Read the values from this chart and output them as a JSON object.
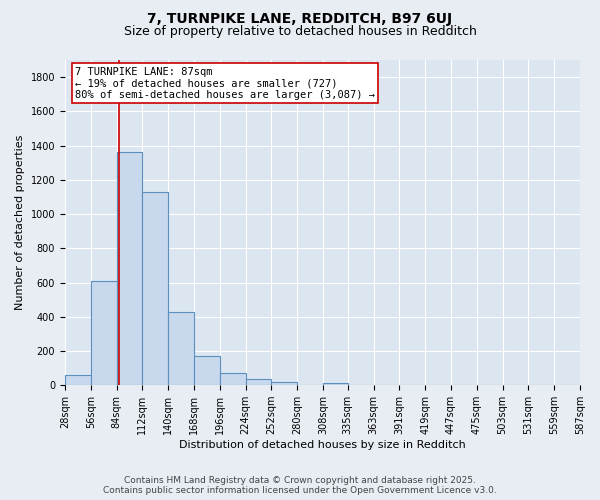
{
  "title1": "7, TURNPIKE LANE, REDDITCH, B97 6UJ",
  "title2": "Size of property relative to detached houses in Redditch",
  "xlabel": "Distribution of detached houses by size in Redditch",
  "ylabel": "Number of detached properties",
  "bin_edges": [
    28,
    56,
    84,
    112,
    140,
    168,
    196,
    224,
    252,
    280,
    308,
    335,
    363,
    391,
    419,
    447,
    475,
    503,
    531,
    559,
    587
  ],
  "bar_heights": [
    60,
    610,
    1360,
    1130,
    430,
    170,
    70,
    35,
    20,
    0,
    15,
    0,
    0,
    0,
    0,
    0,
    0,
    0,
    0,
    0
  ],
  "bar_color": "#c9d9ed",
  "bar_edge_color": "#5b8fc0",
  "bar_linewidth": 0.8,
  "vline_x": 87,
  "vline_color": "#cc0000",
  "vline_linewidth": 1.2,
  "annotation_text": "7 TURNPIKE LANE: 87sqm\n← 19% of detached houses are smaller (727)\n80% of semi-detached houses are larger (3,087) →",
  "annotation_box_color": "#ffffff",
  "annotation_box_edge": "#cc0000",
  "ylim": [
    0,
    1900
  ],
  "yticks": [
    0,
    200,
    400,
    600,
    800,
    1000,
    1200,
    1400,
    1600,
    1800
  ],
  "bg_color": "#e8edf4",
  "plot_bg_color": "#dce6f1",
  "grid_color": "#ffffff",
  "footer_line1": "Contains HM Land Registry data © Crown copyright and database right 2025.",
  "footer_line2": "Contains public sector information licensed under the Open Government Licence v3.0.",
  "title1_fontsize": 10,
  "title2_fontsize": 9,
  "xlabel_fontsize": 8,
  "ylabel_fontsize": 8,
  "tick_fontsize": 7,
  "annotation_fontsize": 7.5,
  "footer_fontsize": 6.5
}
